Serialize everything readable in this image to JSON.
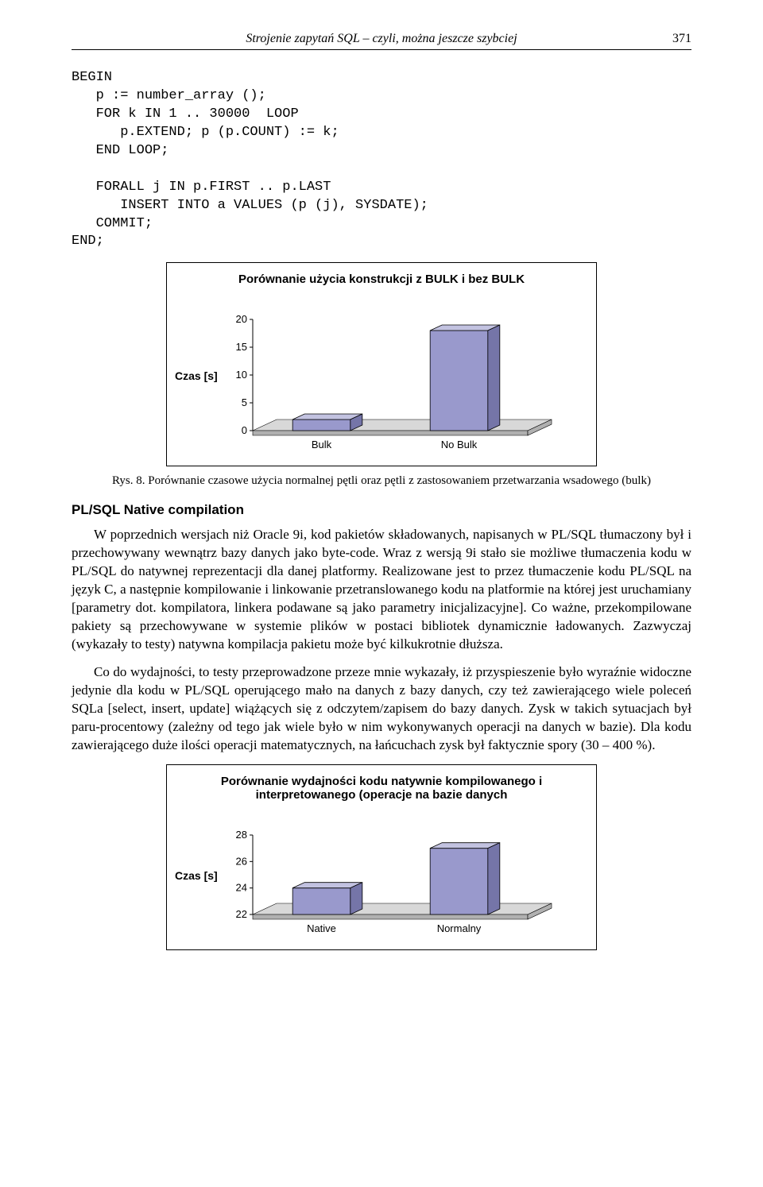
{
  "header": {
    "running_title": "Strojenie zapytań SQL – czyli, można jeszcze szybciej",
    "page_number": "371"
  },
  "code_block": "BEGIN\n   p := number_array ();\n   FOR k IN 1 .. 30000  LOOP\n      p.EXTEND; p (p.COUNT) := k;\n   END LOOP;\n\n   FORALL j IN p.FIRST .. p.LAST\n      INSERT INTO a VALUES (p (j), SYSDATE);\n   COMMIT;\nEND;",
  "chart1": {
    "type": "bar-3d",
    "title": "Porównanie użycia konstrukcji z BULK i bez BULK",
    "y_axis_label": "Czas [s]",
    "y_ticks": [
      "0",
      "5",
      "10",
      "15",
      "20"
    ],
    "ylim": [
      0,
      20
    ],
    "categories": [
      "Bulk",
      "No Bulk"
    ],
    "values": [
      2,
      18
    ],
    "bar_face_color": "#9999cc",
    "bar_top_color": "#c2c2e0",
    "bar_side_color": "#7575a8",
    "floor_color": "#b0b0b0",
    "floor_top_color": "#d8d8d8",
    "axis_color": "#000000",
    "background_color": "#ffffff",
    "tick_fontsize": 13,
    "label_fontsize": 13
  },
  "caption1": {
    "prefix": "Rys. 8. ",
    "text": "Porównanie czasowe użycia normalnej pętli oraz pętli z zastosowaniem przetwarzania wsadowego (bulk)"
  },
  "section_heading": "PL/SQL Native compilation",
  "para1": "W poprzednich wersjach niż Oracle 9i, kod pakietów składowanych, napisanych w PL/SQL tłumaczony był i przechowywany wewnątrz bazy danych  jako byte-code. Wraz z wersją 9i stało sie możliwe tłumaczenia kodu w PL/SQL do natywnej reprezentacji dla danej platformy. Realizowane jest to przez tłumaczenie kodu PL/SQL na język C, a następnie kompilowanie i linkowanie przetranslowanego kodu na platformie na której jest uruchamiany [parametry dot. kompilatora, linkera podawane są jako parametry inicjalizacyjne]. Co ważne, przekompilowane pakiety są przechowywane w systemie plików w postaci bibliotek dynamicznie ładowanych. Zazwyczaj (wykazały to testy) natywna kompilacja pakietu może być kilkukrotnie dłuższa.",
  "para2": "Co do wydajności, to testy przeprowadzone przeze mnie wykazały, iż przyspieszenie było wyraźnie widoczne jedynie dla kodu w PL/SQL operującego mało na danych z bazy danych, czy też zawierającego wiele poleceń SQLa [select, insert, update] wiążących się z odczytem/zapisem do bazy danych. Zysk w takich sytuacjach był paru-procentowy (zależny od tego jak wiele było w nim wykonywanych operacji na danych w bazie). Dla kodu zawierającego duże ilości operacji matematycznych, na łańcuchach zysk był faktycznie spory (30 – 400 %).",
  "chart2": {
    "type": "bar-3d",
    "title": "Porównanie wydajności kodu natywnie kompilowanego i  interpretowanego (operacje na bazie danych",
    "y_axis_label": "Czas [s]",
    "y_ticks": [
      "22",
      "24",
      "26",
      "28"
    ],
    "ylim": [
      22,
      28
    ],
    "categories": [
      "Native",
      "Normalny"
    ],
    "values": [
      24,
      27
    ],
    "bar_face_color": "#9999cc",
    "bar_top_color": "#c2c2e0",
    "bar_side_color": "#7575a8",
    "floor_color": "#b0b0b0",
    "floor_top_color": "#d8d8d8",
    "axis_color": "#000000",
    "background_color": "#ffffff",
    "tick_fontsize": 13,
    "label_fontsize": 13
  }
}
